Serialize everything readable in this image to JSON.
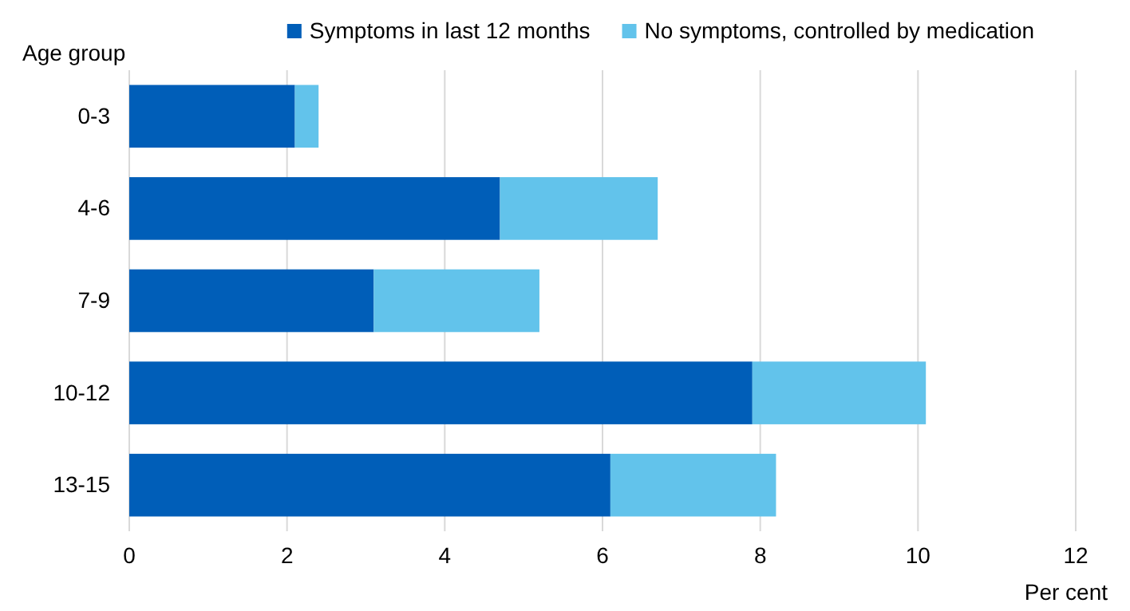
{
  "chart_data": {
    "type": "bar",
    "orientation": "horizontal",
    "stacked": true,
    "ylabel": "Age group",
    "xlabel": "Per cent",
    "categories": [
      "0-3",
      "4-6",
      "7-9",
      "10-12",
      "13-15"
    ],
    "series": [
      {
        "name": "Symptoms in last 12 months",
        "color": "#005eb8",
        "values": [
          2.1,
          4.7,
          3.1,
          7.9,
          6.1
        ]
      },
      {
        "name": "No symptoms, controlled by medication",
        "color": "#62c3eb",
        "values": [
          0.3,
          2.0,
          2.1,
          2.2,
          2.1
        ]
      }
    ],
    "xlim": [
      0,
      12
    ],
    "xticks": [
      0,
      2,
      4,
      6,
      8,
      10,
      12
    ],
    "grid": "x",
    "legend": "top"
  }
}
